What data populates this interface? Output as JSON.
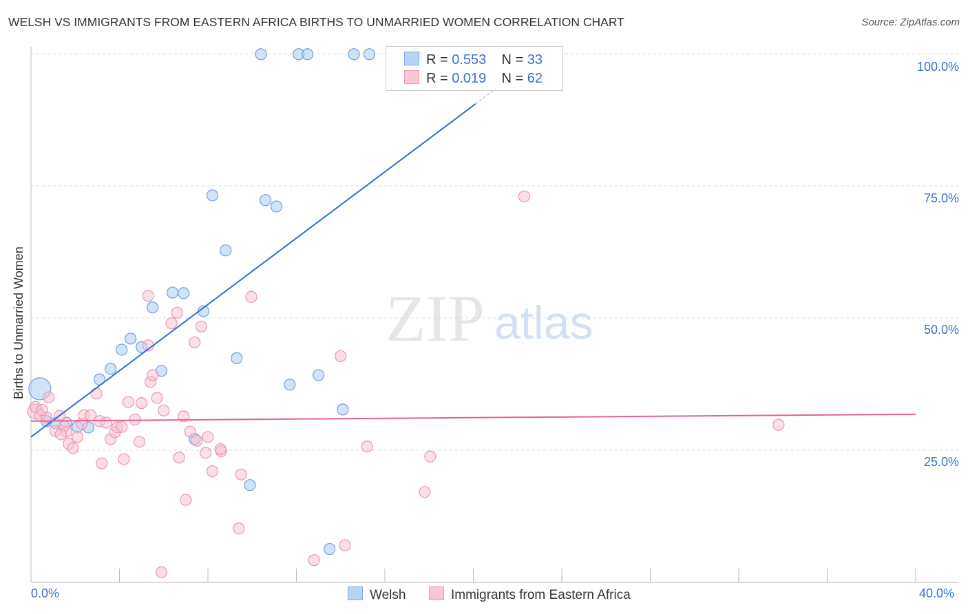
{
  "chart_data": {
    "type": "scatter",
    "title": "WELSH VS IMMIGRANTS FROM EASTERN AFRICA BIRTHS TO UNMARRIED WOMEN CORRELATION CHART",
    "source": "Source: ZipAtlas.com",
    "xlabel": "",
    "ylabel": "Births to Unmarried Women",
    "xlim": [
      0,
      40
    ],
    "ylim": [
      0,
      100
    ],
    "x_tick_labels": [
      "0.0%",
      "40.0%"
    ],
    "y_tick_labels": [
      "100.0%",
      "75.0%",
      "50.0%",
      "25.0%"
    ],
    "y_ticks": [
      100,
      75,
      50,
      25
    ],
    "grid": true,
    "legend_position": "top-center",
    "series": [
      {
        "name": "Welsh",
        "color": "#a8c8f0",
        "stroke": "#6e9fe0",
        "line_color": "#2a6fd6",
        "R": "0.553",
        "N": "33",
        "trend": [
          [
            0,
            27.5
          ],
          [
            20.1,
            90.5
          ],
          [
            22.3,
            97.5
          ]
        ],
        "points": [
          [
            10.4,
            99.9
          ],
          [
            12.1,
            99.9
          ],
          [
            12.5,
            99.9
          ],
          [
            14.6,
            99.9
          ],
          [
            15.3,
            99.9
          ],
          [
            17.4,
            99.9
          ],
          [
            8.2,
            73.2
          ],
          [
            10.6,
            72.3
          ],
          [
            11.1,
            71.1
          ],
          [
            8.8,
            62.8
          ],
          [
            6.4,
            54.8
          ],
          [
            6.9,
            54.7
          ],
          [
            5.5,
            52.0
          ],
          [
            7.8,
            51.3
          ],
          [
            4.5,
            46.1
          ],
          [
            4.1,
            44.0
          ],
          [
            5.0,
            44.5
          ],
          [
            9.3,
            42.4
          ],
          [
            3.6,
            40.4
          ],
          [
            5.9,
            40.0
          ],
          [
            3.1,
            38.4
          ],
          [
            13.0,
            39.2
          ],
          [
            11.7,
            37.4
          ],
          [
            0.4,
            36.6
          ],
          [
            14.1,
            32.7
          ],
          [
            0.7,
            30.5
          ],
          [
            1.1,
            30.1
          ],
          [
            1.6,
            30.2
          ],
          [
            2.1,
            29.4
          ],
          [
            2.6,
            29.3
          ],
          [
            7.4,
            27.1
          ],
          [
            9.9,
            18.4
          ],
          [
            13.5,
            6.3
          ]
        ]
      },
      {
        "name": "Immigrants from Eastern Africa",
        "color": "#f7bfd0",
        "stroke": "#ee93b0",
        "line_color": "#e8608e",
        "R": "0.019",
        "N": "62",
        "trend": [
          [
            0,
            30.5
          ],
          [
            40,
            31.8
          ]
        ],
        "points": [
          [
            0.2,
            32.3
          ],
          [
            0.4,
            31.6
          ],
          [
            0.8,
            35.0
          ],
          [
            0.7,
            31.2
          ],
          [
            1.3,
            31.5
          ],
          [
            1.1,
            28.6
          ],
          [
            1.6,
            28.5
          ],
          [
            1.5,
            29.5
          ],
          [
            1.7,
            26.2
          ],
          [
            1.9,
            25.4
          ],
          [
            2.1,
            27.5
          ],
          [
            2.3,
            30.0
          ],
          [
            2.4,
            31.6
          ],
          [
            2.7,
            31.6
          ],
          [
            2.96,
            35.7
          ],
          [
            3.2,
            22.5
          ],
          [
            3.1,
            30.5
          ],
          [
            3.4,
            30.2
          ],
          [
            3.6,
            27.1
          ],
          [
            3.8,
            28.4
          ],
          [
            3.9,
            29.3
          ],
          [
            4.1,
            29.4
          ],
          [
            4.2,
            23.3
          ],
          [
            4.4,
            34.1
          ],
          [
            4.7,
            30.8
          ],
          [
            4.9,
            26.6
          ],
          [
            5.0,
            33.9
          ],
          [
            5.3,
            54.2
          ],
          [
            5.4,
            37.9
          ],
          [
            5.5,
            39.2
          ],
          [
            5.3,
            44.8
          ],
          [
            5.7,
            34.9
          ],
          [
            6.0,
            32.5
          ],
          [
            6.35,
            49.0
          ],
          [
            6.6,
            51.0
          ],
          [
            6.7,
            23.6
          ],
          [
            6.9,
            31.4
          ],
          [
            7.0,
            15.6
          ],
          [
            7.2,
            28.5
          ],
          [
            7.4,
            45.4
          ],
          [
            7.5,
            26.8
          ],
          [
            7.7,
            48.4
          ],
          [
            7.9,
            24.5
          ],
          [
            8.0,
            27.5
          ],
          [
            8.2,
            21.0
          ],
          [
            8.6,
            24.8
          ],
          [
            8.57,
            25.2
          ],
          [
            9.5,
            20.4
          ],
          [
            9.4,
            10.2
          ],
          [
            9.96,
            54.0
          ],
          [
            5.9,
            1.9
          ],
          [
            12.8,
            4.2
          ],
          [
            14.2,
            7.0
          ],
          [
            14.0,
            42.8
          ],
          [
            15.2,
            25.7
          ],
          [
            17.8,
            17.1
          ],
          [
            18.05,
            23.8
          ],
          [
            22.3,
            73.0
          ],
          [
            33.8,
            29.8
          ],
          [
            1.35,
            28.0
          ],
          [
            0.2,
            33.2
          ],
          [
            0.5,
            32.6
          ]
        ]
      }
    ]
  }
}
